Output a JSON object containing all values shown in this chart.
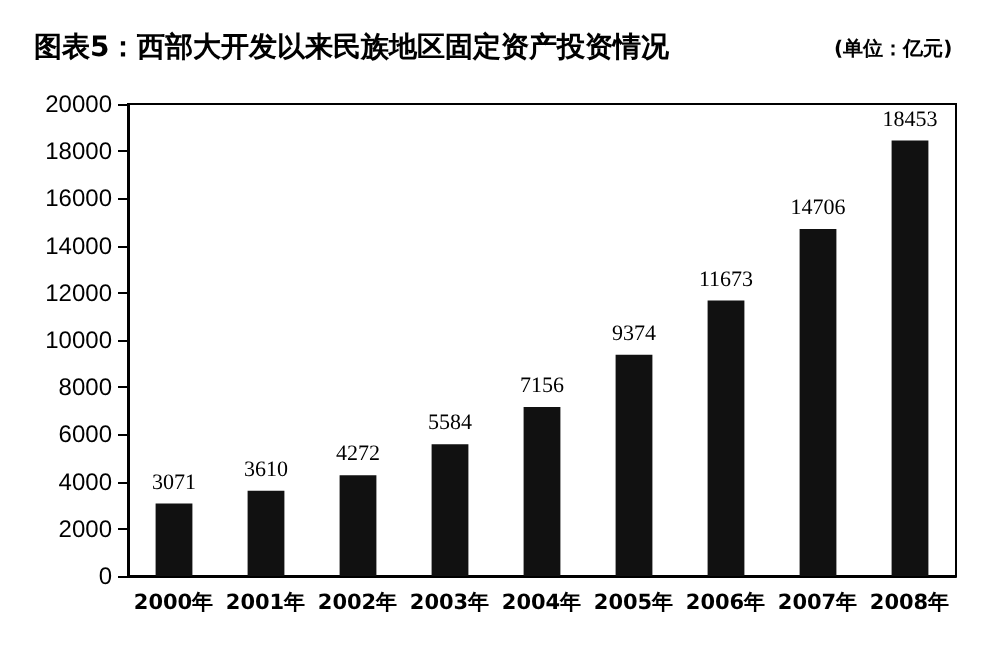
{
  "chart_data": {
    "type": "bar",
    "title": "图表5：西部大开发以来民族地区固定资产投资情况",
    "subtitle": "(单位：亿元)",
    "categories": [
      "2000年",
      "2001年",
      "2002年",
      "2003年",
      "2004年",
      "2005年",
      "2006年",
      "2007年",
      "2008年"
    ],
    "values": [
      3071,
      3610,
      4272,
      5584,
      7156,
      9374,
      11673,
      14706,
      18453
    ],
    "color": "#111111",
    "ylim": [
      0,
      20000
    ],
    "yticks": [
      0,
      2000,
      4000,
      6000,
      8000,
      10000,
      12000,
      14000,
      16000,
      18000,
      20000
    ],
    "grid": false,
    "data_labels": true
  }
}
